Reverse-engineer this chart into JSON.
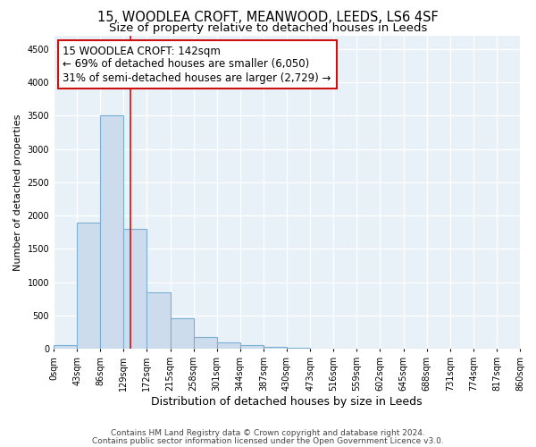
{
  "title": "15, WOODLEA CROFT, MEANWOOD, LEEDS, LS6 4SF",
  "subtitle": "Size of property relative to detached houses in Leeds",
  "xlabel": "Distribution of detached houses by size in Leeds",
  "ylabel": "Number of detached properties",
  "bin_edges": [
    0,
    43,
    86,
    129,
    172,
    215,
    258,
    301,
    344,
    387,
    430,
    473,
    516,
    559,
    602,
    645,
    688,
    731,
    774,
    817,
    860
  ],
  "bar_heights": [
    50,
    1900,
    3500,
    1800,
    850,
    450,
    170,
    90,
    55,
    30,
    20,
    5,
    3,
    2,
    1,
    1,
    0,
    0,
    0,
    0
  ],
  "bar_color": "#ccdcec",
  "bar_edge_color": "#7bafd4",
  "bar_linewidth": 0.8,
  "vline_x": 142,
  "vline_color": "#cc1111",
  "vline_linewidth": 1.2,
  "ylim": [
    0,
    4700
  ],
  "yticks": [
    0,
    500,
    1000,
    1500,
    2000,
    2500,
    3000,
    3500,
    4000,
    4500
  ],
  "annotation_text": "15 WOODLEA CROFT: 142sqm\n← 69% of detached houses are smaller (6,050)\n31% of semi-detached houses are larger (2,729) →",
  "annotation_box_color": "#ffffff",
  "annotation_box_edge_color": "#cc1111",
  "footer1": "Contains HM Land Registry data © Crown copyright and database right 2024.",
  "footer2": "Contains public sector information licensed under the Open Government Licence v3.0.",
  "background_color": "#e8f0f8",
  "grid_color": "#ffffff",
  "title_fontsize": 10.5,
  "subtitle_fontsize": 9.5,
  "xlabel_fontsize": 9,
  "ylabel_fontsize": 8,
  "tick_fontsize": 7,
  "annotation_fontsize": 8.5,
  "footer_fontsize": 6.5
}
